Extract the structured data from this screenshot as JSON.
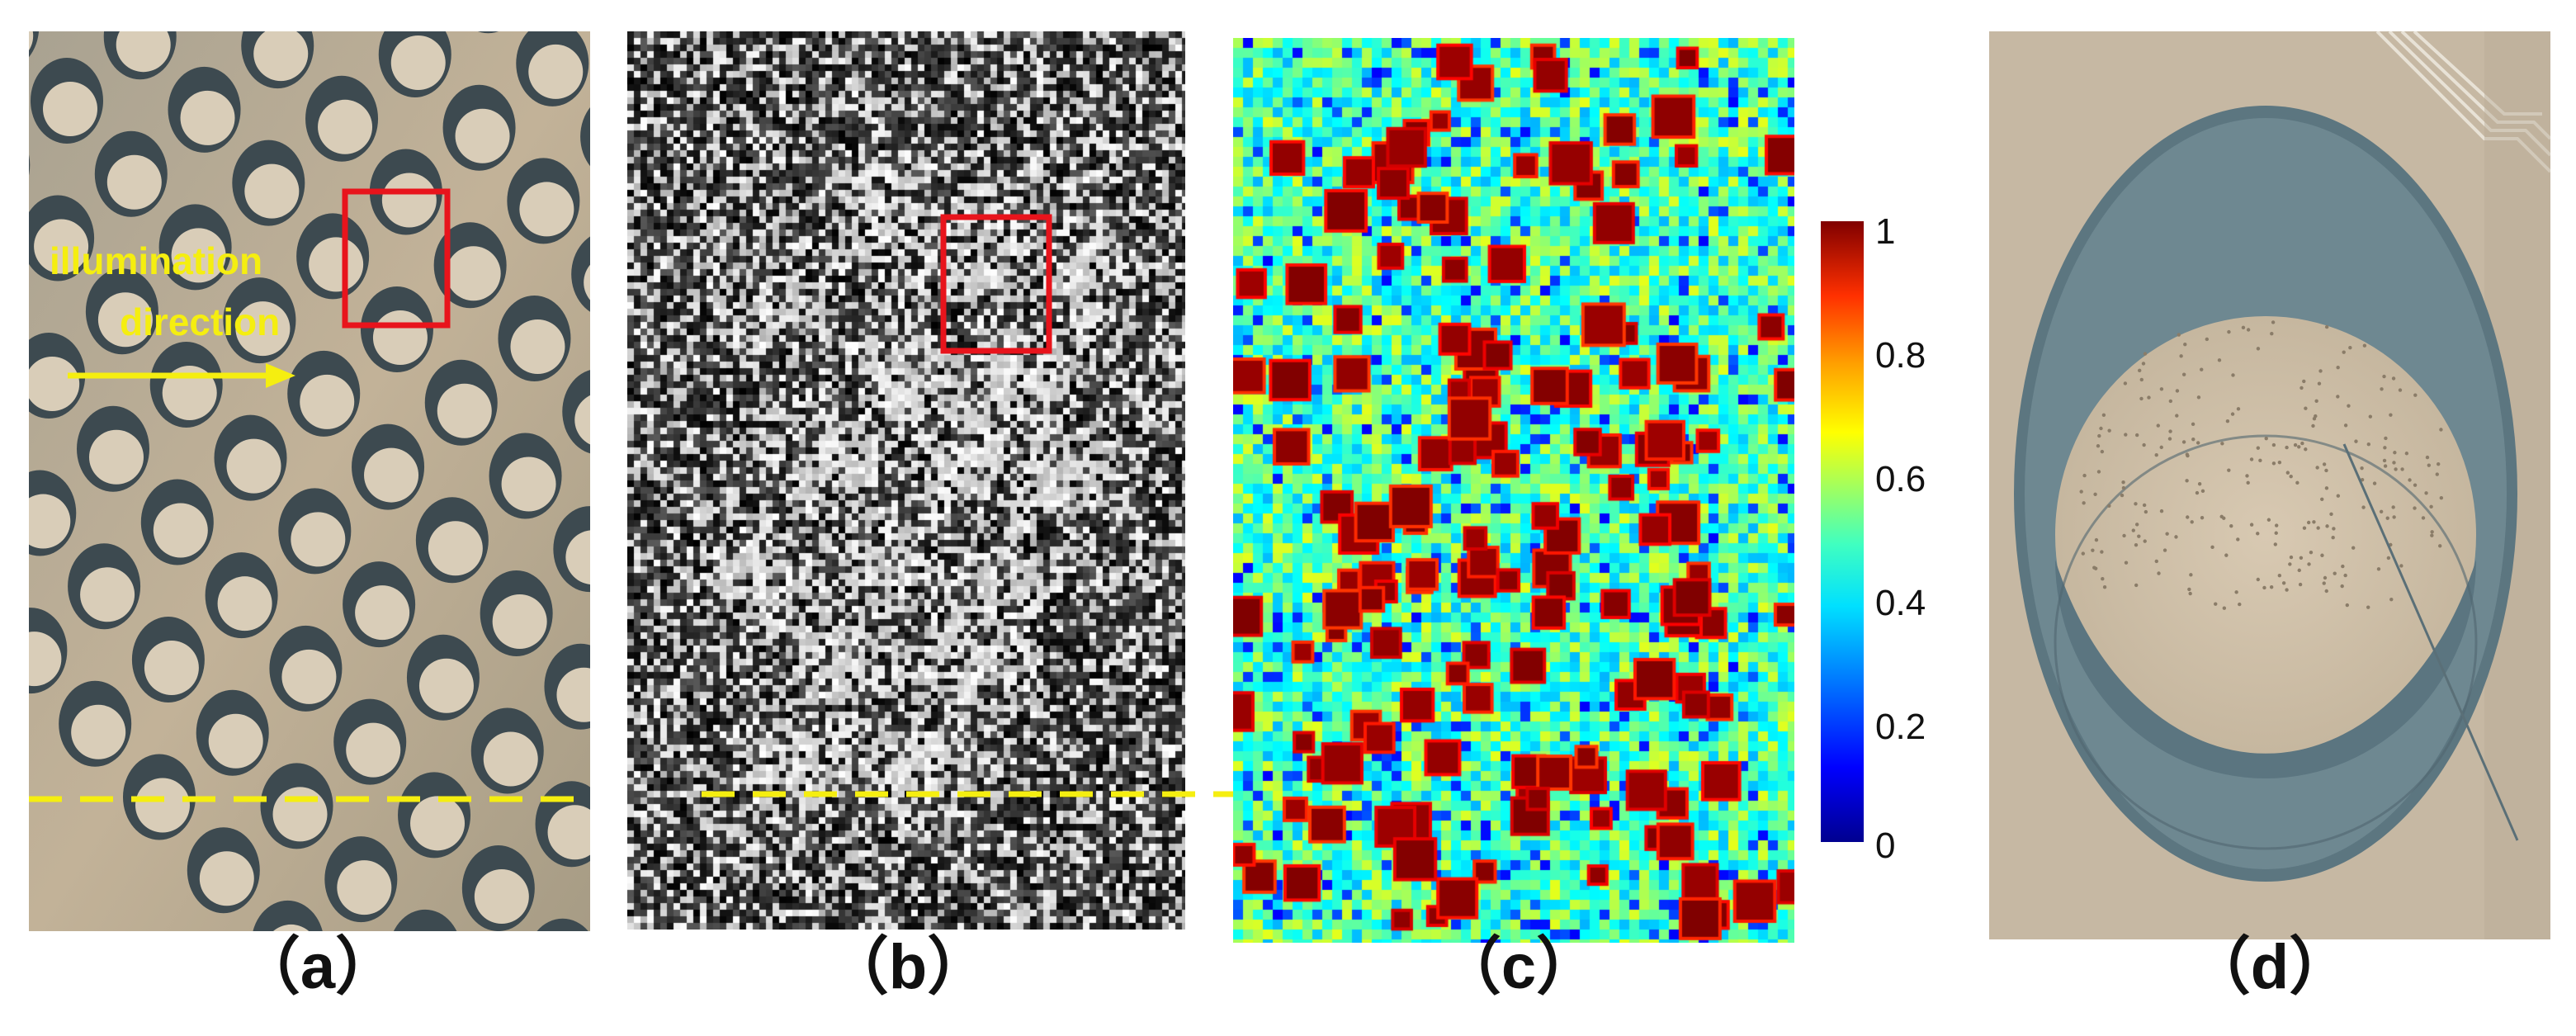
{
  "figure": {
    "captions": [
      "（a）",
      "（b）",
      "（c）",
      "（d）"
    ],
    "illumination_label_line1": "illumination",
    "illumination_label_line2": "direction",
    "colorbar": {
      "ticks": [
        "1",
        "0.8",
        "0.6",
        "0.4",
        "0.2",
        "0"
      ],
      "colormap": "jet",
      "range": [
        0,
        1
      ]
    },
    "colors": {
      "highlight_box": "#e8141c",
      "dashed_line": "#f5ee10",
      "annotation_text": "#f5ee10"
    },
    "panels": [
      {
        "id": "a",
        "content": "optical-image-oil-tank-farm"
      },
      {
        "id": "b",
        "content": "sar-intensity-image"
      },
      {
        "id": "c",
        "content": "coherence-map"
      },
      {
        "id": "d",
        "content": "optical-closeup-single-tank"
      }
    ]
  }
}
